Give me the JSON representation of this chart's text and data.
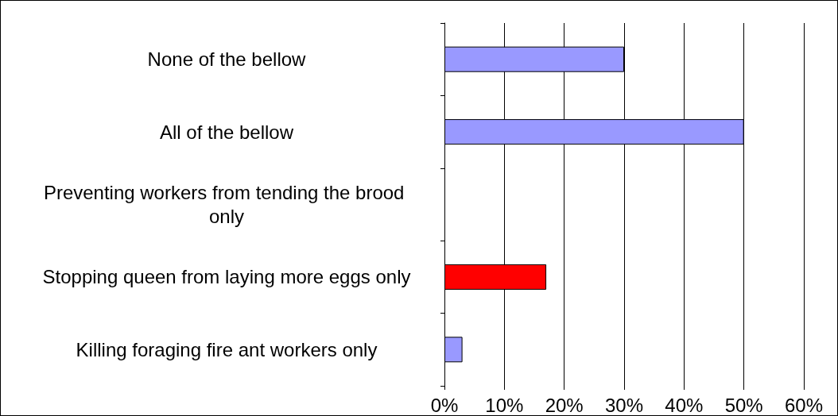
{
  "chart_data": {
    "type": "bar",
    "orientation": "horizontal",
    "categories": [
      "None of the bellow",
      "All of the bellow",
      "Preventing workers from tending the brood only",
      "Stopping queen from laying more eggs only",
      "Killing foraging fire ant workers only"
    ],
    "values": [
      30,
      50,
      0,
      17,
      3
    ],
    "colors": [
      "#9999ff",
      "#9999ff",
      "#9999ff",
      "#ff0000",
      "#9999ff"
    ],
    "xlim": [
      0,
      60
    ],
    "xticks": [
      {
        "value": 0,
        "label": "0%"
      },
      {
        "value": 10,
        "label": "10%"
      },
      {
        "value": 20,
        "label": "20%"
      },
      {
        "value": 30,
        "label": "30%"
      },
      {
        "value": 40,
        "label": "40%"
      },
      {
        "value": 50,
        "label": "50%"
      },
      {
        "value": 60,
        "label": "60%"
      }
    ],
    "grid": "x"
  }
}
